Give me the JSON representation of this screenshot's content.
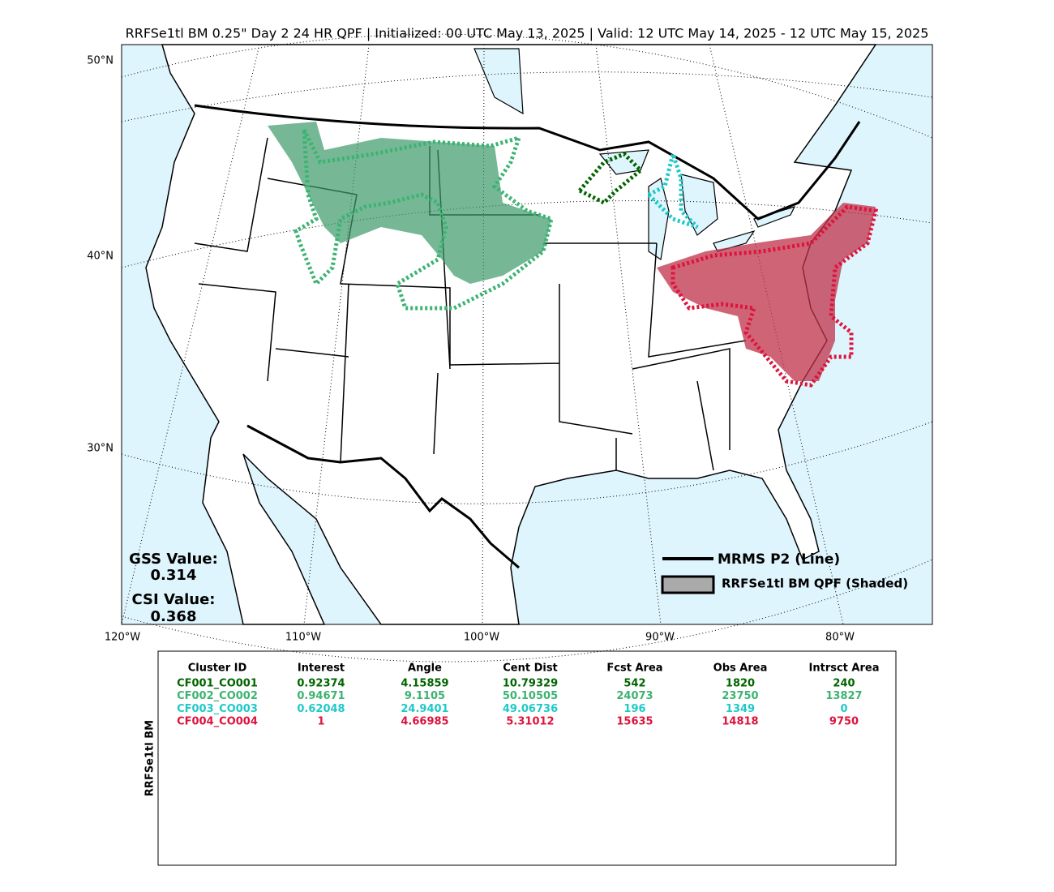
{
  "title": "RRFSe1tl BM 0.25\" Day 2 24 HR QPF | Initialized: 00 UTC May 13, 2025 | Valid: 12 UTC May 14, 2025 - 12 UTC May 15, 2025",
  "map": {
    "lat_labels": [
      "50°N",
      "40°N",
      "30°N"
    ],
    "lon_labels": [
      "120°W",
      "110°W",
      "100°W",
      "90°W",
      "80°W"
    ],
    "legend": [
      "MRMS P2 (Line)",
      "RRFSe1tl BM QPF (Shaded)"
    ],
    "scores": [
      {
        "label": "GSS Value:",
        "value": 0.314
      },
      {
        "label": "CSI Value:",
        "value": 0.368
      }
    ]
  },
  "table": {
    "side_label": "RRFSe1tl BM",
    "header": [
      "Cluster ID",
      "Interest",
      "Angle",
      "Cent Dist",
      "Fcst Area",
      "Obs Area",
      "Intrsct Area"
    ],
    "row_colors": [
      "#006400",
      "#3cb371",
      "#20c8c8",
      "#dc143c"
    ],
    "rows": [
      [
        "CF001_CO001",
        0.92374,
        4.15859,
        10.79329,
        542,
        1820,
        240
      ],
      [
        "CF002_CO002",
        0.94671,
        9.1105,
        50.10505,
        24073,
        23750,
        13827
      ],
      [
        "CF003_CO003",
        0.62048,
        24.9401,
        49.06736,
        196,
        1349,
        0
      ],
      [
        "CF004_CO004",
        1,
        4.66985,
        5.31012,
        15635,
        14818,
        9750
      ]
    ]
  }
}
